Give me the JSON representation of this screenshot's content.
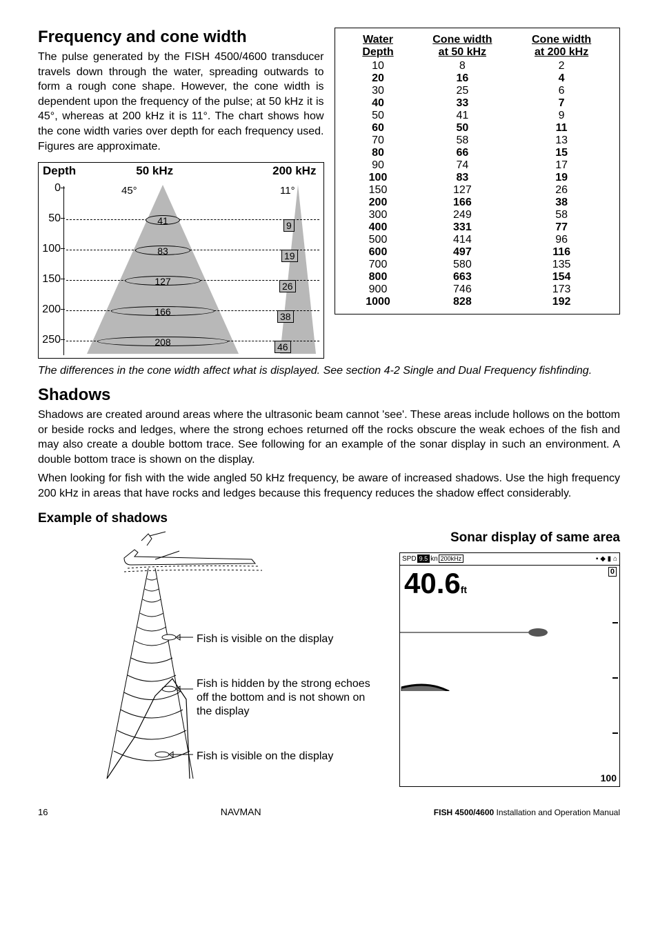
{
  "section1": {
    "title": "Frequency and cone width",
    "body": "The pulse generated by the FISH 4500/4600 transducer travels down through the water, spreading outwards to form a rough cone shape. However, the cone width is dependent upon the frequency of the pulse; at 50 kHz it is 45°, whereas at 200 kHz it is 11°. The chart shows how the cone width varies over depth for each frequency used. Figures are approximate."
  },
  "cone_table": {
    "headers": [
      "Water Depth",
      "Cone width at 50 kHz",
      "Cone width at 200 kHz"
    ],
    "rows": [
      {
        "d": "10",
        "c50": "8",
        "c200": "2",
        "bold": false
      },
      {
        "d": "20",
        "c50": "16",
        "c200": "4",
        "bold": true
      },
      {
        "d": "30",
        "c50": "25",
        "c200": "6",
        "bold": false
      },
      {
        "d": "40",
        "c50": "33",
        "c200": "7",
        "bold": true
      },
      {
        "d": "50",
        "c50": "41",
        "c200": "9",
        "bold": false
      },
      {
        "d": "60",
        "c50": "50",
        "c200": "11",
        "bold": true
      },
      {
        "d": "70",
        "c50": "58",
        "c200": "13",
        "bold": false
      },
      {
        "d": "80",
        "c50": "66",
        "c200": "15",
        "bold": true
      },
      {
        "d": "90",
        "c50": "74",
        "c200": "17",
        "bold": false
      },
      {
        "d": "100",
        "c50": "83",
        "c200": "19",
        "bold": true
      },
      {
        "d": "150",
        "c50": "127",
        "c200": "26",
        "bold": false
      },
      {
        "d": "200",
        "c50": "166",
        "c200": "38",
        "bold": true
      },
      {
        "d": "300",
        "c50": "249",
        "c200": "58",
        "bold": false
      },
      {
        "d": "400",
        "c50": "331",
        "c200": "77",
        "bold": true
      },
      {
        "d": "500",
        "c50": "414",
        "c200": "96",
        "bold": false
      },
      {
        "d": "600",
        "c50": "497",
        "c200": "116",
        "bold": true
      },
      {
        "d": "700",
        "c50": "580",
        "c200": "135",
        "bold": false
      },
      {
        "d": "800",
        "c50": "663",
        "c200": "154",
        "bold": true
      },
      {
        "d": "900",
        "c50": "746",
        "c200": "173",
        "bold": false
      },
      {
        "d": "1000",
        "c50": "828",
        "c200": "192",
        "bold": true
      }
    ]
  },
  "depth_chart": {
    "type": "cone-diagram",
    "header": {
      "depth": "Depth",
      "c50": "50 kHz",
      "c200": "200 kHz"
    },
    "y_ticks": [
      "0",
      "50",
      "100",
      "150",
      "200",
      "250"
    ],
    "y_tick_spacing_px": 44,
    "angle_50": "45°",
    "angle_200": "11°",
    "cone_fill_color": "#b8b8b8",
    "ellipse_rows": [
      {
        "y": 52,
        "label50": "41",
        "w50": 50,
        "label200": "9",
        "w200": 14
      },
      {
        "y": 96,
        "label50": "83",
        "w50": 80,
        "label200": "19",
        "w200": 20
      },
      {
        "y": 140,
        "label50": "127",
        "w50": 110,
        "label200": "26",
        "w200": 26
      },
      {
        "y": 184,
        "label50": "166",
        "w50": 150,
        "label200": "38",
        "w200": 32
      },
      {
        "y": 228,
        "label50": "208",
        "w50": 190,
        "label200": "46",
        "w200": 40
      }
    ]
  },
  "caption1": "The differences in the cone width affect what is displayed. See section 4-2 Single and Dual Frequency fishfinding.",
  "section2": {
    "title": "Shadows",
    "body1": "Shadows are created around areas where the ultrasonic beam cannot 'see'. These areas include hollows on the bottom or beside rocks and ledges, where the strong echoes returned off the rocks obscure the weak echoes of the fish and may also create a double bottom trace. See following for an example of the sonar display in such an environment. A double bottom trace is shown on the display.",
    "body2": "When looking for fish with the wide angled 50 kHz frequency, be aware of increased shadows. Use the high frequency 200 kHz in areas that have rocks and ledges because this frequency reduces the shadow effect considerably."
  },
  "example": {
    "title": "Example of shadows",
    "sonar_title": "Sonar display of same area",
    "labels": {
      "fish_visible1": "Fish is visible on the display",
      "fish_hidden": "Fish is hidden by the strong echoes off the bottom and is not shown on the display",
      "fish_visible2": "Fish is visible on the display"
    }
  },
  "sonar": {
    "spd_label": "SPD",
    "spd_value": "9.5",
    "unit_label": "kn",
    "freq_label": "200kHz",
    "depth_reading": "40.6",
    "depth_unit": "ft",
    "scale_top": "0",
    "scale_bottom": "100",
    "background": "#ffffff",
    "trace_color": "#3a3a3a"
  },
  "footer": {
    "page": "16",
    "center": "NAVMAN",
    "right_bold": "FISH 4500/4600",
    "right_rest": " Installation and Operation Manual"
  }
}
